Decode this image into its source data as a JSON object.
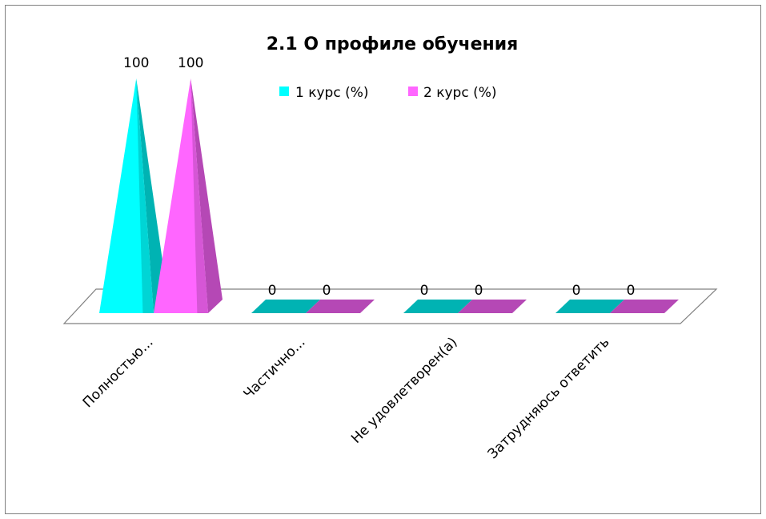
{
  "chart_data": {
    "type": "bar",
    "title": "2.1 О профиле обучения",
    "xlabel": "",
    "ylabel": "",
    "categories": [
      "Полностью...",
      "Частично...",
      "Не удовлетворен(а)",
      "Затрудняюсь ответить"
    ],
    "series": [
      {
        "name": "1 курс (%)",
        "values": [
          100,
          0,
          0,
          0
        ]
      },
      {
        "name": "2 курс (%)",
        "values": [
          100,
          0,
          0,
          0
        ]
      }
    ],
    "ylim": [
      0,
      100
    ],
    "grid": false,
    "legend": "top",
    "shape": "3d-pyramid",
    "colors": {
      "series1": "#00FFFF",
      "series1_side": "#00B3B3",
      "series2": "#FF66FF",
      "series2_side": "#B548B5",
      "floor": "#808080",
      "border": "#808080"
    }
  }
}
